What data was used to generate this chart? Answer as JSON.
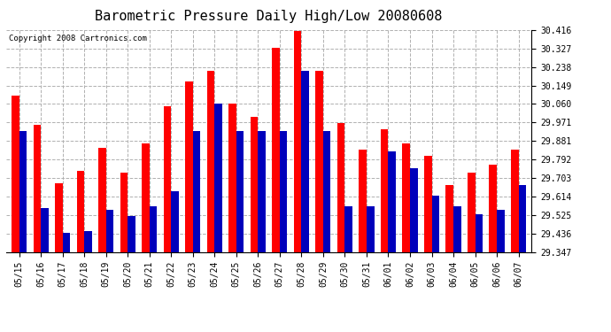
{
  "title": "Barometric Pressure Daily High/Low 20080608",
  "copyright": "Copyright 2008 Cartronics.com",
  "dates": [
    "05/15",
    "05/16",
    "05/17",
    "05/18",
    "05/19",
    "05/20",
    "05/21",
    "05/22",
    "05/23",
    "05/24",
    "05/25",
    "05/26",
    "05/27",
    "05/28",
    "05/29",
    "05/30",
    "05/31",
    "06/01",
    "06/02",
    "06/03",
    "06/04",
    "06/05",
    "06/06",
    "06/07"
  ],
  "highs": [
    30.1,
    29.96,
    29.68,
    29.74,
    29.85,
    29.73,
    29.87,
    30.05,
    30.17,
    30.22,
    30.06,
    30.0,
    30.33,
    30.41,
    30.22,
    29.97,
    29.84,
    29.94,
    29.87,
    29.81,
    29.67,
    29.73,
    29.77,
    29.84
  ],
  "lows": [
    29.93,
    29.56,
    29.44,
    29.45,
    29.55,
    29.52,
    29.57,
    29.64,
    29.93,
    30.06,
    29.93,
    29.93,
    29.93,
    30.22,
    29.93,
    29.57,
    29.57,
    29.83,
    29.75,
    29.62,
    29.57,
    29.53,
    29.55,
    29.67
  ],
  "high_color": "#ff0000",
  "low_color": "#0000bb",
  "bg_color": "#ffffff",
  "grid_color": "#b0b0b0",
  "ymin": 29.347,
  "ymax": 30.416,
  "yticks": [
    29.347,
    29.436,
    29.525,
    29.614,
    29.703,
    29.792,
    29.881,
    29.971,
    30.06,
    30.149,
    30.238,
    30.327,
    30.416
  ],
  "title_fontsize": 11,
  "copyright_fontsize": 6.5,
  "tick_fontsize": 7,
  "bar_width": 0.35
}
